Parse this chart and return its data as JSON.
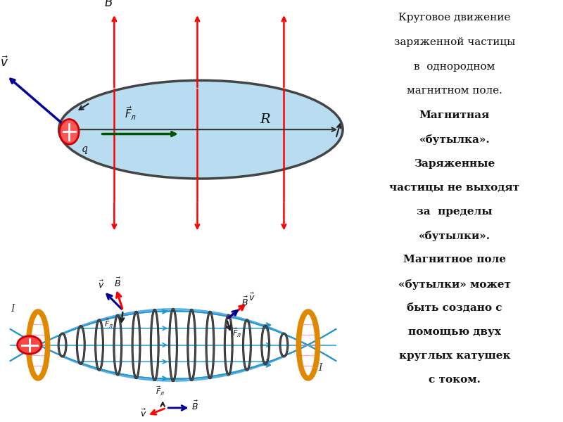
{
  "bg_top": "#d8f0d0",
  "bg_bottom": "#fffff0",
  "bg_right": "#f0f0f0",
  "text_color": "#111111",
  "text_lines_normal": [
    "Круговое движение",
    "заряженной частицы",
    "в  однородном",
    "магнитном поле."
  ],
  "text_lines_bold": [
    "Магнитная",
    "«бутылка».",
    "Заряженные",
    "частицы не выходят",
    "за  пределы",
    "«бутылки».",
    "Магнитное поле",
    "«бутылки» может",
    "быть создано с",
    "помощью двух",
    "круглых катушек",
    "с током."
  ],
  "red": "#ff0000",
  "blue_dark": "#000099",
  "blue_arrow": "#0044cc",
  "green_dark": "#005500",
  "orange": "#e08800",
  "cyan": "#2299cc",
  "dark": "#222222",
  "pink": "#ff88aa"
}
